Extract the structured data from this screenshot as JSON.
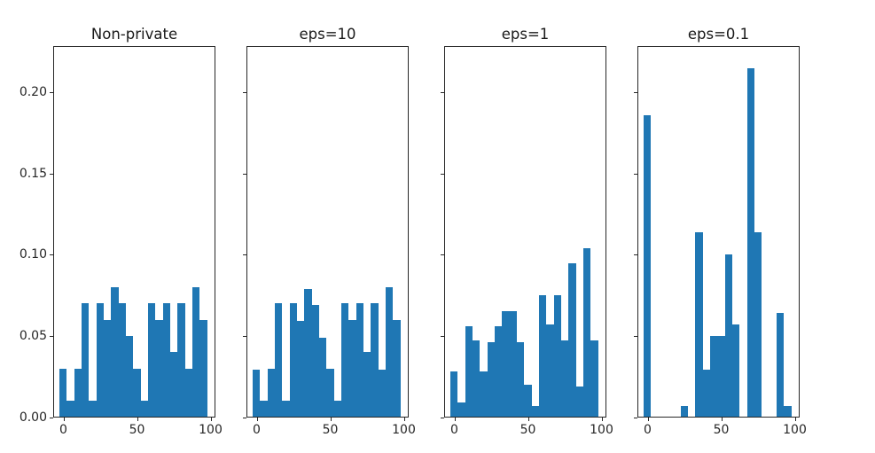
{
  "figure": {
    "background": "#ffffff",
    "description": "Four histogram subplots comparing a non-private histogram with differentially private versions at decreasing epsilon"
  },
  "style": {
    "bar_color": "#1f77b4",
    "axis_color": "#262626",
    "text_color": "#262626",
    "title_color": "#1a1a1a"
  },
  "y_axis": {
    "ylim": [
      0,
      0.2288
    ],
    "tick_values": [
      0,
      0.05,
      0.1,
      0.15,
      0.2
    ],
    "tick_labels": [
      "0.00",
      "0.05",
      "0.10",
      "0.15",
      "0.20"
    ],
    "grid": false
  },
  "chart_data": [
    {
      "type": "bar",
      "subtype": "histogram",
      "title": "Non-private",
      "bin_start": -2.8,
      "bin_width": 5.02,
      "xlim": [
        -7.9,
        103.8
      ],
      "x_tick_values": [
        0,
        50,
        100
      ],
      "x_tick_labels": [
        "0",
        "50",
        "100"
      ],
      "show_y_tick_labels": true,
      "values": [
        0.03,
        0.01,
        0.03,
        0.07,
        0.01,
        0.07,
        0.06,
        0.08,
        0.07,
        0.05,
        0.03,
        0.01,
        0.07,
        0.06,
        0.07,
        0.04,
        0.07,
        0.03,
        0.08,
        0.06
      ]
    },
    {
      "type": "bar",
      "subtype": "histogram",
      "title": "eps=10",
      "bin_start": -2.8,
      "bin_width": 5.02,
      "xlim": [
        -7.9,
        103.8
      ],
      "x_tick_values": [
        0,
        50,
        100
      ],
      "x_tick_labels": [
        "0",
        "50",
        "100"
      ],
      "show_y_tick_labels": false,
      "values": [
        0.029,
        0.01,
        0.03,
        0.07,
        0.01,
        0.07,
        0.059,
        0.079,
        0.069,
        0.049,
        0.03,
        0.01,
        0.07,
        0.06,
        0.07,
        0.04,
        0.07,
        0.029,
        0.08,
        0.06
      ]
    },
    {
      "type": "bar",
      "subtype": "histogram",
      "title": "eps=1",
      "bin_start": -2.8,
      "bin_width": 5.02,
      "xlim": [
        -7.9,
        103.8
      ],
      "x_tick_values": [
        0,
        50,
        100
      ],
      "x_tick_labels": [
        "0",
        "50",
        "100"
      ],
      "show_y_tick_labels": false,
      "values": [
        0.028,
        0.009,
        0.056,
        0.047,
        0.028,
        0.046,
        0.056,
        0.065,
        0.065,
        0.046,
        0.02,
        0.007,
        0.075,
        0.057,
        0.075,
        0.047,
        0.095,
        0.019,
        0.104,
        0.047
      ]
    },
    {
      "type": "bar",
      "subtype": "histogram",
      "title": "eps=0.1",
      "bin_start": -2.8,
      "bin_width": 5.02,
      "xlim": [
        -7.9,
        103.8
      ],
      "x_tick_values": [
        0,
        50,
        100
      ],
      "x_tick_labels": [
        "0",
        "50",
        "100"
      ],
      "show_y_tick_labels": false,
      "values": [
        0.186,
        0,
        0,
        0,
        0,
        0.007,
        0,
        0.114,
        0.029,
        0.05,
        0.05,
        0.1,
        0.057,
        0,
        0.215,
        0.114,
        0,
        0,
        0.064,
        0.007
      ]
    }
  ]
}
